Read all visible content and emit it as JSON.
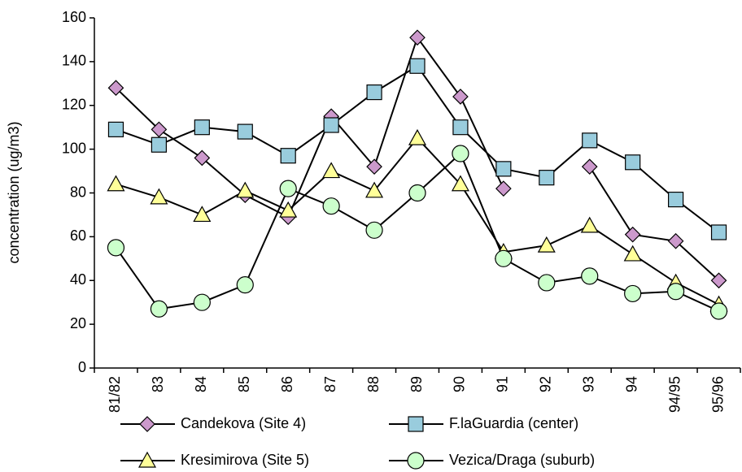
{
  "chart_data": {
    "type": "line",
    "y_label": "concentration (ug/m3)",
    "categories": [
      "81/82",
      "83",
      "84",
      "85",
      "86",
      "87",
      "88",
      "89",
      "90",
      "91",
      "92",
      "93",
      "94",
      "94/95",
      "95/96"
    ],
    "series": [
      {
        "name": "Candekova (Site 4)",
        "color": "#cc99cc",
        "marker": "diamond",
        "values": [
          128,
          109,
          96,
          79,
          69,
          115,
          92,
          151,
          124,
          82,
          null,
          92,
          61,
          58,
          40
        ]
      },
      {
        "name": "F.laGuardia (center)",
        "color": "#99ccdd",
        "marker": "square",
        "values": [
          109,
          102,
          110,
          108,
          97,
          111,
          126,
          138,
          110,
          91,
          87,
          104,
          94,
          77,
          62
        ]
      },
      {
        "name": "Kresimirova (Site 5)",
        "color": "#ffff99",
        "marker": "triangle",
        "values": [
          84,
          78,
          70,
          81,
          72,
          90,
          81,
          105,
          84,
          53,
          56,
          65,
          52,
          39,
          29
        ]
      },
      {
        "name": "Vezica/Draga (suburb)",
        "color": "#ccffcc",
        "marker": "circle",
        "values": [
          55,
          27,
          30,
          38,
          82,
          74,
          63,
          80,
          98,
          50,
          39,
          42,
          34,
          35,
          26
        ]
      }
    ],
    "ylim": [
      0,
      160
    ],
    "yticks": [
      0,
      20,
      40,
      60,
      80,
      100,
      120,
      140,
      160
    ],
    "grid": false
  }
}
